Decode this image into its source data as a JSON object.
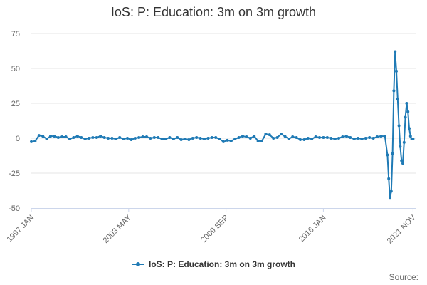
{
  "chart_data": {
    "type": "line",
    "title": "IoS: P: Education: 3m on 3m growth",
    "xlabel": "",
    "ylabel": "",
    "ylim": [
      -50,
      75
    ],
    "yticks": [
      75,
      50,
      25,
      0,
      -25,
      -50
    ],
    "ytick_labels": [
      "75",
      "50",
      "25",
      "0",
      "-25",
      "-50"
    ],
    "xrange": [
      "1997-01",
      "2022-01"
    ],
    "xticks": [
      "1997-01",
      "2003-05",
      "2009-09",
      "2016-01",
      "2021-11"
    ],
    "xtick_labels": [
      "1997 JAN",
      "2003 MAY",
      "2009 SEP",
      "2016 JAN",
      "2021 NOV"
    ],
    "grid": "horizontal",
    "legend_position": "bottom",
    "color": "#1f7ab5",
    "series": [
      {
        "name": "IoS: P: Education: 3m on 3m growth",
        "points": [
          [
            "1997-01",
            -2.5
          ],
          [
            "1997-04",
            -2.0
          ],
          [
            "1997-07",
            2.0
          ],
          [
            "1997-10",
            1.5
          ],
          [
            "1998-01",
            -0.5
          ],
          [
            "1998-04",
            1.5
          ],
          [
            "1998-07",
            1.5
          ],
          [
            "1998-10",
            0.5
          ],
          [
            "1999-01",
            1.0
          ],
          [
            "1999-04",
            1.0
          ],
          [
            "1999-07",
            -0.5
          ],
          [
            "1999-10",
            0.5
          ],
          [
            "2000-01",
            1.5
          ],
          [
            "2000-04",
            0.5
          ],
          [
            "2000-07",
            -0.5
          ],
          [
            "2000-10",
            0.0
          ],
          [
            "2001-01",
            0.5
          ],
          [
            "2001-04",
            0.5
          ],
          [
            "2001-07",
            1.5
          ],
          [
            "2001-10",
            0.5
          ],
          [
            "2002-01",
            0.0
          ],
          [
            "2002-04",
            0.0
          ],
          [
            "2002-07",
            -0.5
          ],
          [
            "2002-10",
            0.5
          ],
          [
            "2003-01",
            -0.5
          ],
          [
            "2003-04",
            0.0
          ],
          [
            "2003-07",
            -1.0
          ],
          [
            "2003-10",
            0.0
          ],
          [
            "2004-01",
            0.5
          ],
          [
            "2004-04",
            1.0
          ],
          [
            "2004-07",
            1.0
          ],
          [
            "2004-10",
            0.0
          ],
          [
            "2005-01",
            0.5
          ],
          [
            "2005-04",
            0.5
          ],
          [
            "2005-07",
            -0.5
          ],
          [
            "2005-10",
            -0.5
          ],
          [
            "2006-01",
            0.5
          ],
          [
            "2006-04",
            -0.5
          ],
          [
            "2006-07",
            0.5
          ],
          [
            "2006-10",
            -1.0
          ],
          [
            "2007-01",
            -0.5
          ],
          [
            "2007-04",
            -1.0
          ],
          [
            "2007-07",
            0.0
          ],
          [
            "2007-10",
            0.5
          ],
          [
            "2008-01",
            0.0
          ],
          [
            "2008-04",
            -0.5
          ],
          [
            "2008-07",
            0.0
          ],
          [
            "2008-10",
            0.5
          ],
          [
            "2009-01",
            0.5
          ],
          [
            "2009-04",
            -0.5
          ],
          [
            "2009-07",
            -2.5
          ],
          [
            "2009-10",
            -1.5
          ],
          [
            "2010-01",
            -2.0
          ],
          [
            "2010-04",
            -0.5
          ],
          [
            "2010-07",
            0.5
          ],
          [
            "2010-10",
            1.5
          ],
          [
            "2011-01",
            1.0
          ],
          [
            "2011-04",
            0.0
          ],
          [
            "2011-07",
            1.5
          ],
          [
            "2011-10",
            -2.0
          ],
          [
            "2012-01",
            -2.0
          ],
          [
            "2012-04",
            3.0
          ],
          [
            "2012-07",
            2.5
          ],
          [
            "2012-10",
            0.0
          ],
          [
            "2013-01",
            0.5
          ],
          [
            "2013-04",
            3.0
          ],
          [
            "2013-07",
            1.5
          ],
          [
            "2013-10",
            -0.5
          ],
          [
            "2014-01",
            1.0
          ],
          [
            "2014-04",
            0.5
          ],
          [
            "2014-07",
            -1.0
          ],
          [
            "2014-10",
            -1.0
          ],
          [
            "2015-01",
            0.0
          ],
          [
            "2015-04",
            -0.5
          ],
          [
            "2015-07",
            1.0
          ],
          [
            "2015-10",
            0.5
          ],
          [
            "2016-01",
            0.5
          ],
          [
            "2016-04",
            0.5
          ],
          [
            "2016-07",
            0.0
          ],
          [
            "2016-10",
            -0.5
          ],
          [
            "2017-01",
            0.0
          ],
          [
            "2017-04",
            1.0
          ],
          [
            "2017-07",
            1.5
          ],
          [
            "2017-10",
            0.5
          ],
          [
            "2018-01",
            -0.5
          ],
          [
            "2018-04",
            0.0
          ],
          [
            "2018-07",
            -0.5
          ],
          [
            "2018-10",
            0.0
          ],
          [
            "2019-01",
            0.5
          ],
          [
            "2019-04",
            0.0
          ],
          [
            "2019-07",
            1.0
          ],
          [
            "2019-10",
            1.5
          ],
          [
            "2020-01",
            1.5
          ],
          [
            "2020-03",
            -12.0
          ],
          [
            "2020-04",
            -29.0
          ],
          [
            "2020-05",
            -43.0
          ],
          [
            "2020-06",
            -38.0
          ],
          [
            "2020-07",
            -11.0
          ],
          [
            "2020-08",
            34.0
          ],
          [
            "2020-09",
            62.0
          ],
          [
            "2020-10",
            48.0
          ],
          [
            "2020-11",
            28.0
          ],
          [
            "2020-12",
            9.0
          ],
          [
            "2021-01",
            -6.0
          ],
          [
            "2021-02",
            -16.0
          ],
          [
            "2021-03",
            -18.0
          ],
          [
            "2021-04",
            -3.0
          ],
          [
            "2021-05",
            15.0
          ],
          [
            "2021-06",
            25.0
          ],
          [
            "2021-07",
            19.0
          ],
          [
            "2021-08",
            7.0
          ],
          [
            "2021-09",
            1.5
          ],
          [
            "2021-10",
            -0.5
          ],
          [
            "2021-11",
            -0.5
          ]
        ]
      }
    ]
  },
  "source_label": "Source:"
}
